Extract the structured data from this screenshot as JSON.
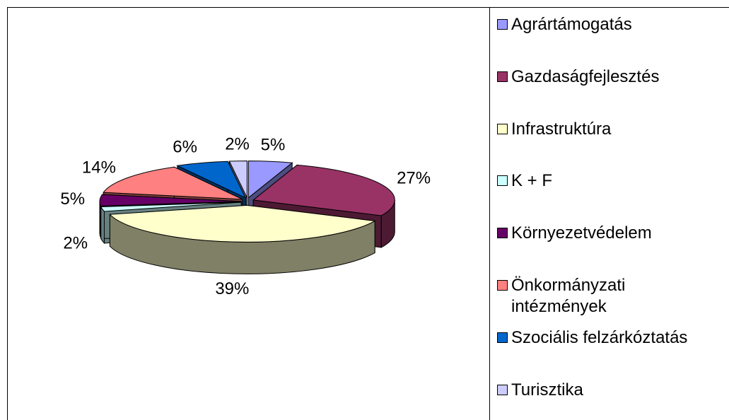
{
  "chart_data": {
    "type": "pie",
    "style": "3d-exploded",
    "categories": [
      "Agrártámogatás",
      "Gazdaságfejlesztés",
      "Infrastruktúra",
      "K + F",
      "Környezetvédelem",
      "Önkormányzati intézmények",
      "Szociális felzárkóztatás",
      "Turisztika"
    ],
    "values": [
      5,
      27,
      39,
      2,
      5,
      14,
      6,
      2
    ],
    "value_labels": [
      "5%",
      "27%",
      "39%",
      "2%",
      "5%",
      "14%",
      "6%",
      "2%"
    ],
    "colors": [
      "#9999ff",
      "#993366",
      "#ffffcc",
      "#ccffff",
      "#660066",
      "#ff8080",
      "#0066cc",
      "#ccccff"
    ],
    "legend": "right"
  }
}
